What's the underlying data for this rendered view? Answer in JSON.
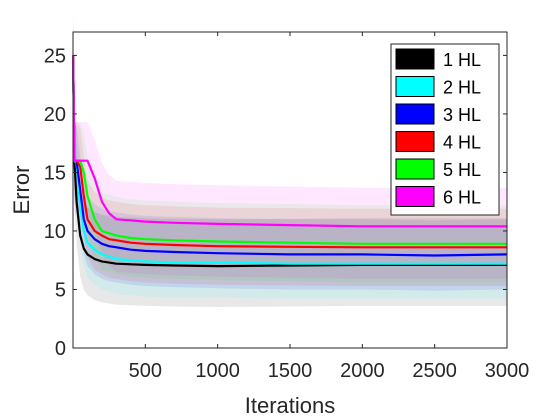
{
  "chart_data": {
    "type": "line",
    "title": "",
    "xlabel": "Iterations",
    "ylabel": "Error",
    "xlim": [
      0,
      3000
    ],
    "ylim": [
      0,
      27
    ],
    "xticks": [
      500,
      1000,
      1500,
      2000,
      2500,
      3000
    ],
    "yticks": [
      0,
      5,
      10,
      15,
      20,
      25
    ],
    "grid": false,
    "legend_position": "top-right",
    "x": [
      1,
      10,
      25,
      50,
      75,
      100,
      150,
      200,
      250,
      300,
      400,
      500,
      700,
      1000,
      1500,
      2000,
      2500,
      3000
    ],
    "series": [
      {
        "name": "1 HL",
        "color": "#000000",
        "values": [
          25,
          16.0,
          12.5,
          9.6,
          8.5,
          8.0,
          7.6,
          7.4,
          7.3,
          7.2,
          7.15,
          7.1,
          7.05,
          7.0,
          7.05,
          7.1,
          7.1,
          7.1
        ],
        "band": [
          3.5,
          4.0
        ]
      },
      {
        "name": "2 HL",
        "color": "#00ffff",
        "values": [
          25,
          16.0,
          15.8,
          12.0,
          10.0,
          9.0,
          8.4,
          8.0,
          7.8,
          7.6,
          7.5,
          7.4,
          7.3,
          7.3,
          7.2,
          7.2,
          7.2,
          7.2
        ],
        "band": [
          3.0,
          3.3
        ]
      },
      {
        "name": "3 HL",
        "color": "#0000ff",
        "values": [
          25,
          16.0,
          16.0,
          13.5,
          11.0,
          10.0,
          9.3,
          8.9,
          8.7,
          8.6,
          8.4,
          8.3,
          8.2,
          8.1,
          8.0,
          8.0,
          7.9,
          8.0
        ],
        "band": [
          3.0,
          3.0
        ]
      },
      {
        "name": "4 HL",
        "color": "#ff0000",
        "values": [
          25,
          16.0,
          16.0,
          15.5,
          13.0,
          11.0,
          10.0,
          9.6,
          9.3,
          9.2,
          9.0,
          8.9,
          8.8,
          8.7,
          8.65,
          8.6,
          8.6,
          8.6
        ],
        "band": [
          3.3,
          3.3
        ]
      },
      {
        "name": "5 HL",
        "color": "#00ff00",
        "values": [
          25,
          16.0,
          16.0,
          16.0,
          15.0,
          13.0,
          11.0,
          10.0,
          9.8,
          9.6,
          9.4,
          9.3,
          9.2,
          9.1,
          9.0,
          8.9,
          8.9,
          8.9
        ],
        "band": [
          3.3,
          3.3
        ]
      },
      {
        "name": "6 HL",
        "color": "#ff00ff",
        "values": [
          25,
          16.0,
          16.0,
          16.0,
          16.0,
          16.0,
          14.5,
          12.5,
          11.5,
          11.0,
          10.9,
          10.8,
          10.7,
          10.6,
          10.5,
          10.4,
          10.4,
          10.4
        ],
        "band": [
          4.5,
          3.3
        ]
      }
    ]
  }
}
